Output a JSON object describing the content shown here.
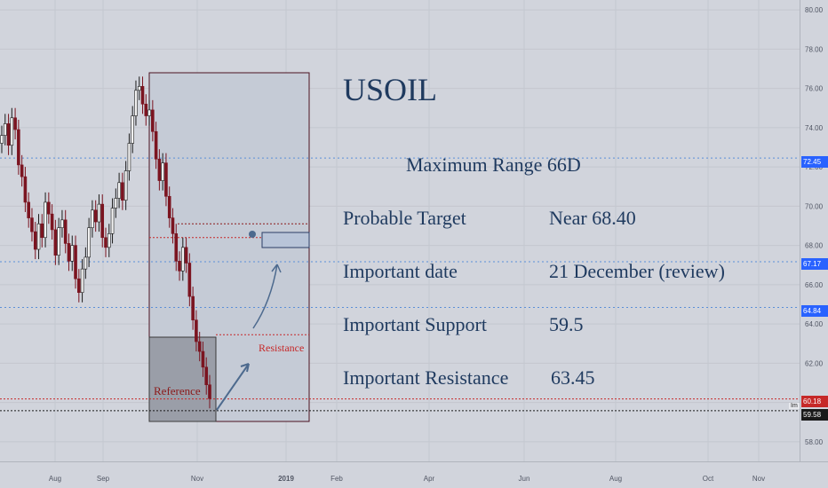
{
  "title": "USOIL",
  "annotations": {
    "range": "Maximum Range 66D",
    "target_label": "Probable Target",
    "target_value": "Near 68.40",
    "date_label": "Important date",
    "date_value": "21 December (review)",
    "support_label": "Important Support",
    "support_value": "59.5",
    "resistance_label": "Important Resistance",
    "resistance_value": "63.45",
    "chart_resistance": "Resistance",
    "chart_reference": "Reference"
  },
  "price_tags": [
    {
      "value": "72.45",
      "color": "#2962ff"
    },
    {
      "value": "67.17",
      "color": "#2962ff"
    },
    {
      "value": "64.84",
      "color": "#2962ff"
    },
    {
      "value": "60.18",
      "color": "#c62828"
    },
    {
      "value": "59.58",
      "color": "#1a1a1a"
    }
  ],
  "last_tag_prefix": "Im",
  "chart_data": {
    "type": "candlestick",
    "y_ticks": [
      "80.00",
      "78.00",
      "76.00",
      "74.00",
      "72.00",
      "70.00",
      "68.00",
      "66.00",
      "64.00",
      "62.00",
      "60.00",
      "58.00"
    ],
    "ylim": [
      57,
      80.5
    ],
    "x_ticks": [
      "Aug",
      "Sep",
      "Nov",
      "2019",
      "Feb",
      "Apr",
      "Jun",
      "Aug",
      "Oct",
      "Nov"
    ],
    "close": [
      73.6,
      74.2,
      73.1,
      74.5,
      73.9,
      72.1,
      71.5,
      70.2,
      69.4,
      68.7,
      67.8,
      69.1,
      68.4,
      70.2,
      69.6,
      68.8,
      67.5,
      68.9,
      69.3,
      68.1,
      67.2,
      68.0,
      66.3,
      65.6,
      66.8,
      67.4,
      68.9,
      69.8,
      69.2,
      70.1,
      68.4,
      67.9,
      68.6,
      69.9,
      70.4,
      71.2,
      70.3,
      71.8,
      73.2,
      74.6,
      75.9,
      76.1,
      75.2,
      74.6,
      74.9,
      73.8,
      72.4,
      71.3,
      72.2,
      70.5,
      69.4,
      68.6,
      67.2,
      66.7,
      67.9,
      67.1,
      65.4,
      64.2,
      63.1,
      62.6,
      61.8,
      60.9,
      60.2
    ]
  }
}
